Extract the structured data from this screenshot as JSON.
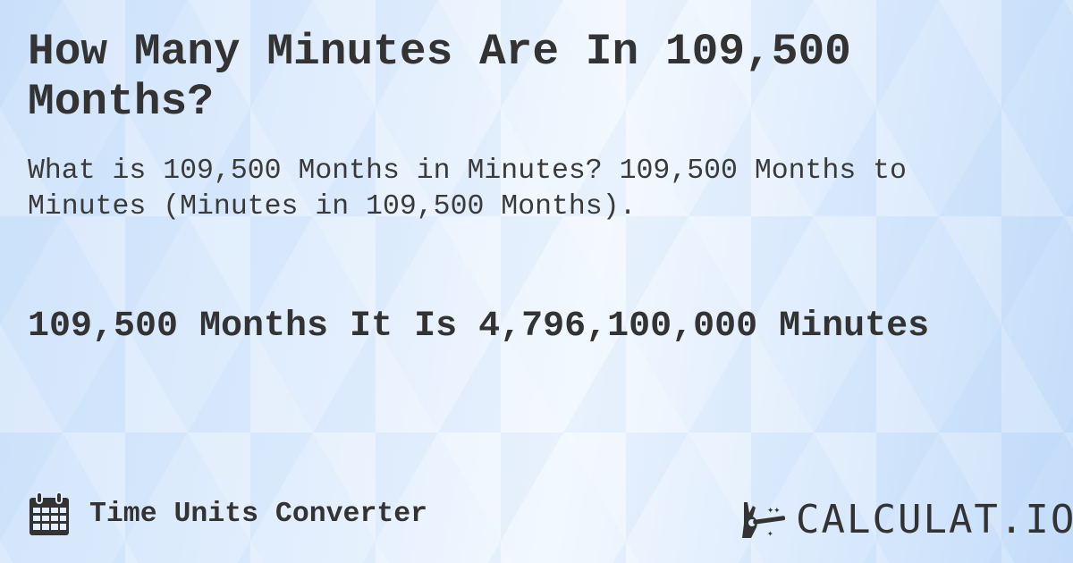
{
  "title": "How Many Minutes Are In 109,500 Months?",
  "subtitle": "What is 109,500 Months in Minutes? 109,500 Months to Minutes (Minutes in 109,500 Months).",
  "answer": "109,500 Months It Is 4,796,100,000 Minutes",
  "footer": {
    "category": "Time Units Converter",
    "category_icon": "calendar-icon"
  },
  "logo": {
    "text": "CALCULAT.IO",
    "icon": "magic-hand-icon"
  },
  "colors": {
    "text": "#333333",
    "background": "#dbeafc"
  }
}
